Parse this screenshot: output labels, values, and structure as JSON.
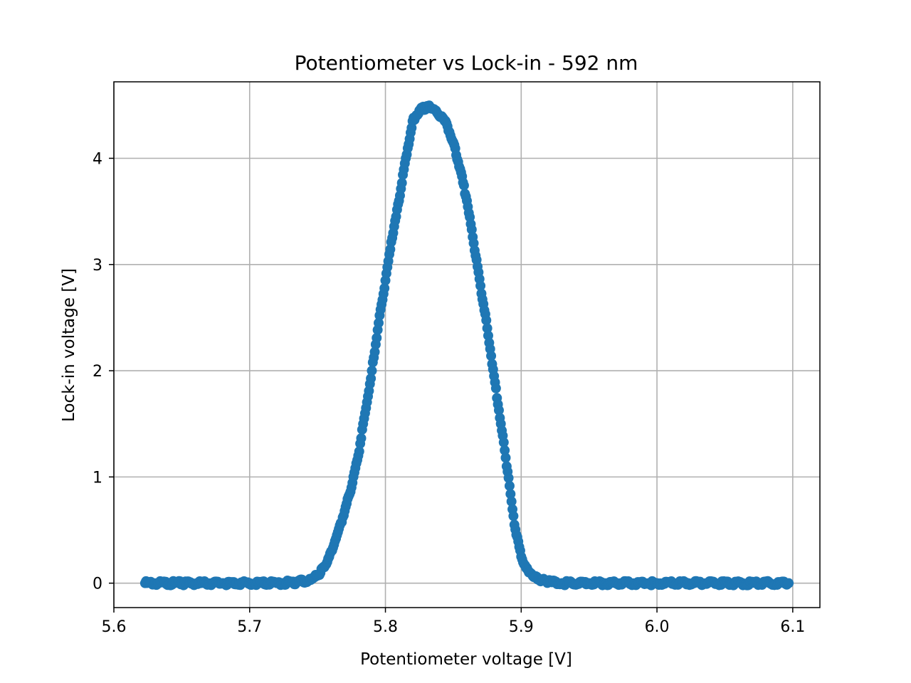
{
  "chart_data": {
    "type": "scatter",
    "title": "Potentiometer vs Lock-in - 592 nm",
    "xlabel": "Potentiometer voltage [V]",
    "ylabel": "Lock-in voltage [V]",
    "xlim": [
      5.6,
      6.12
    ],
    "ylim": [
      -0.23,
      4.72
    ],
    "xticks": [
      5.6,
      5.7,
      5.8,
      5.9,
      6.0,
      6.1
    ],
    "xtick_labels": [
      "5.6",
      "5.7",
      "5.8",
      "5.9",
      "6.0",
      "6.1"
    ],
    "yticks": [
      0,
      1,
      2,
      3,
      4
    ],
    "ytick_labels": [
      "0",
      "1",
      "2",
      "3",
      "4"
    ],
    "grid": true,
    "series_color": "#1f77b4",
    "series": [
      {
        "x": [
          5.623,
          5.65,
          5.68,
          5.7,
          5.72,
          5.735,
          5.745,
          5.75,
          5.755,
          5.76,
          5.765,
          5.77,
          5.775,
          5.78,
          5.785,
          5.79,
          5.795,
          5.8,
          5.805,
          5.81,
          5.815,
          5.82,
          5.825,
          5.83,
          5.833,
          5.838,
          5.845,
          5.85,
          5.855,
          5.86,
          5.865,
          5.87,
          5.875,
          5.88,
          5.885,
          5.89,
          5.895,
          5.9,
          5.905,
          5.91,
          5.915,
          5.92,
          5.93,
          5.95,
          6.0,
          6.05,
          6.097
        ],
        "y": [
          0.0,
          0.0,
          0.0,
          0.0,
          0.0,
          0.01,
          0.03,
          0.07,
          0.15,
          0.3,
          0.48,
          0.68,
          0.9,
          1.2,
          1.6,
          2.0,
          2.45,
          2.85,
          3.25,
          3.6,
          4.0,
          4.35,
          4.45,
          4.48,
          4.48,
          4.43,
          4.33,
          4.15,
          3.9,
          3.6,
          3.2,
          2.8,
          2.4,
          1.95,
          1.5,
          1.05,
          0.55,
          0.25,
          0.12,
          0.06,
          0.03,
          0.01,
          0.0,
          0.0,
          0.0,
          0.0,
          0.0
        ]
      }
    ]
  }
}
